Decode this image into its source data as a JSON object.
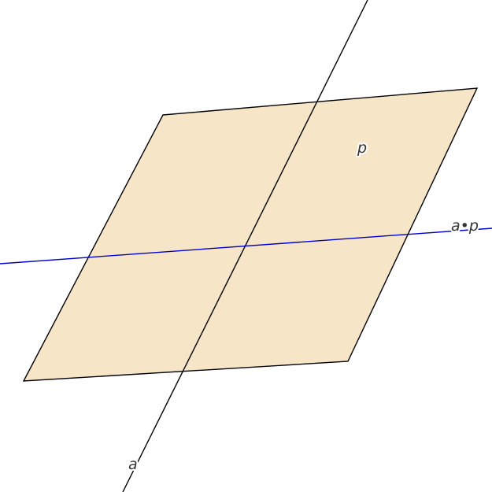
{
  "diagram": {
    "plane_label": "p",
    "line_label": "a",
    "product_label": "a•p",
    "colors": {
      "plane_fill": "#f7e5c8",
      "plane_edge": "#000000",
      "line_a": "#000000",
      "product_line": "#0000cc",
      "label_text": "#333333"
    }
  }
}
